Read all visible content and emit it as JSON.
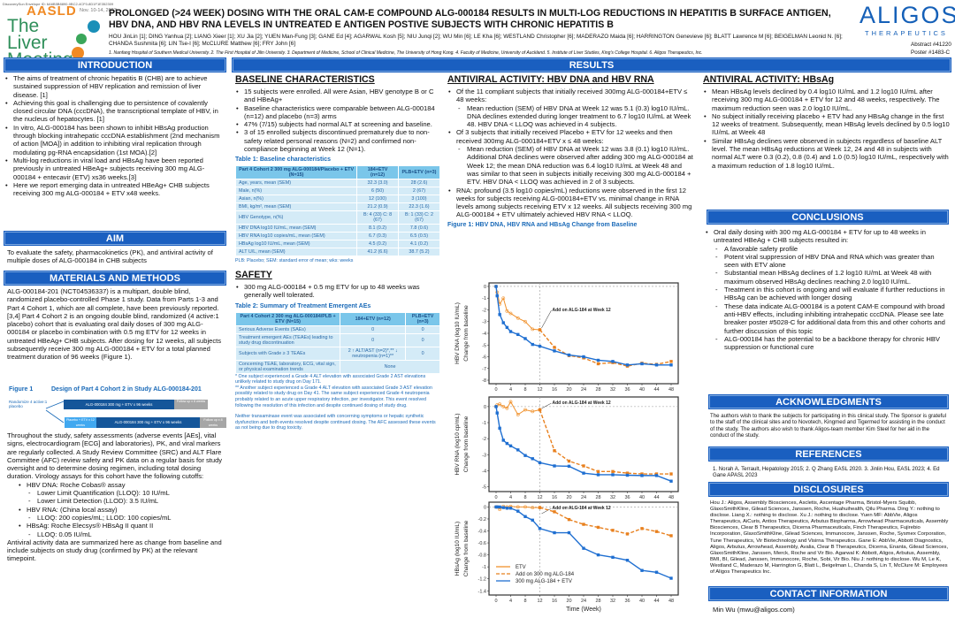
{
  "header": {
    "doi_note": "DiscoverySun Envelope ID: 6A6B5B8890-0BC2-4CF0-8D1F1E352309",
    "aasld": "AASLD",
    "dates": "Nov. 10-14, 2023",
    "meeting": "The Liver Meeting",
    "title": "PROLONGED (>24 WEEK) DOSING WITH THE ORAL CAM-E COMPOUND ALG-000184 RESULTS IN MULTI-LOG REDUCTIONS IN HEPATITIS B SURFACE ANTIGEN, HBV DNA, AND HBV RNA LEVELS IN UNTREATED E ANTIGEN POSTIVE SUBJECTS WITH CHRONIC HEPATITIS B",
    "authors": "HOU JinLin [1]; DING Yanhua [2]; LIANG Xieer [1]; XU Jia [2]; YUEN Man-Fung [3]; GANE Ed [4]; AGARWAL Kosh [5]; NIU Junqi [2]; WU Min [6]; LE Kha [6]; WESTLAND Christopher [6]; MADERAZO Maida [6]; HARRINGTON Genevieve [6]; BLATT Lawrence M [6]; BEIGELMAN Leonid N. [6]; CHANDA Sushmita [6]; LIN Tse-I [6]; McCLURE Matthew [6]; FRY John [6]",
    "affiliations": "1. Nanfang Hospital of Southern Medical University. 2. The First Hospital of Jilin University. 3. Department of Medicine, School of Clinical Medicine, The University of Hong Kong. 4. Faculty of Medicine, University of Auckland. 5. Institute of Liver Studies, King's College Hospital. 6. Aligos Therapeutics, Inc.",
    "logo": "ALIGOS",
    "logo_sub": "THERAPEUTICS",
    "abstract": "Abstract #41220",
    "poster": "Poster #1483-C"
  },
  "banners": {
    "intro": "INTRODUCTION",
    "results": "RESULTS",
    "aim": "AIM",
    "methods": "MATERIALS AND METHODS",
    "conclusions": "CONCLUSIONS",
    "ack": "ACKNOWLEDGMENTS",
    "refs": "REFERENCES",
    "disc": "DISCLOSURES",
    "contact": "CONTACT INFORMATION"
  },
  "intro": [
    {
      "text": "The aims of treatment of chronic hepatitis B (CHB) are to achieve sustained suppression of HBV replication and remission of liver disease. [1]"
    },
    {
      "text": "Achieving this goal is challenging due to persistence of covalently closed circular DNA (cccDNA), the transcriptional template of HBV, in the nucleus of hepatocytes. [1]"
    },
    {
      "text": "In vitro, ALG-000184 has been shown to inhibit HBsAg production through blocking intrahepatic cccDNA establishment (2nd mechanism of action [MOA]) in addition to inhibiting viral replication through modulating pg-RNA encapsidation (1st MOA).[2]"
    },
    {
      "text": "Multi-log reductions in viral load and HBsAg have been reported previously in untreated HBeAg+ subjects receiving 300 mg ALG-000184 + entecavir (ETV) xs36 weeks.[3]"
    },
    {
      "text": "Here we report emerging data in untreated HBeAg+ CHB subjects receiving 300 mg ALG-000184 + ETV x48 weeks."
    }
  ],
  "aim": "To evaluate the safety, pharmacokinetics (PK), and antiviral activity of multiple doses of ALG-000184 in CHB subjects",
  "methods": {
    "p1": "ALG-000184-201 (NCT04536337) is a multipart, double blind, randomized placebo-controlled Phase 1 study. Data from Parts 1-3 and Part 4 Cohort 1, which are all complete, have been previously reported. [3,4] Part 4 Cohort 2 is an ongoing double blind, randomized (4 active:1 placebo) cohort that is evaluating oral daily doses of 300 mg ALG-000184 or placebo in combination with 0.5 mg ETV for 12 weeks in untreated HBeAg+ CHB subjects. After dosing for 12 weeks, all subjects subsequently receive 300 mg ALG-000184 + ETV for a total planned treatment duration of 96 weeks (Figure 1).",
    "fig_label": "Figure 1",
    "fig_title": "Design of Part 4 Cohort 2 in Study ALG-000184-201",
    "randomize": "Randomize 4 active:1 placebo",
    "arm1": "ALG-000184 300 mg + ETV x 96 weeks",
    "followup1": "Follow up x 8 weeks",
    "placebo": "Placebo + ETV x 12 weeks",
    "arm2": "ALG-000184 300 mg + ETV x  96  weeks",
    "followup2": "Follow up x 8 weeks",
    "p2": "Throughout the study, safety assessments (adverse events [AEs], vital signs, electrocardiogram [ECG] and laboratories), PK, and viral markers are regularly collected. A Study Review Committee (SRC) and ALT Flare Committee (AFC) review safety and PK data on a regular basis for study oversight and to determine dosing regimen, including total dosing duration. Virology assays for this cohort have the following cutoffs:",
    "assays": [
      {
        "text": "HBV DNA: Roche Cobas® assay",
        "sub": [
          "Lower Limit Quantification (LLOQ): 10 IU/mL",
          "Lower Limit Detection (LLOD): 3.5 IU/mL"
        ]
      },
      {
        "text": "HBV RNA: (China local assay)",
        "sub": [
          "LLOQ: 200 copies/mL; LLOD: 100 copies/mL"
        ]
      },
      {
        "text": "HBsAg: Roche Elecsys® HBsAg II quant II",
        "sub": [
          "LLOQ: 0.05 IU/mL"
        ]
      }
    ],
    "p3": "Antiviral activity data are summarized here as change from baseline and include subjects on study drug (confirmed by PK) at the relevant timepoint."
  },
  "baseline": {
    "heading": "BASELINE CHARACTERISTICS",
    "bullets": [
      {
        "text": "15 subjects were enrolled.  All were Asian, HBV genotype B or C and HBeAg+"
      },
      {
        "text": "Baseline characteristics were comparable between ALG-000184 (n=12) and placebo (n=3) arms"
      },
      {
        "text": "47% (7/15) subjects had normal ALT at screening and baseline."
      },
      {
        "text": "3 of 15 enrolled subjects discontinued prematurely due to non-safety related personal reasons (N=2) and confirmed non-compliance beginning at Week 12 (N=1)."
      }
    ],
    "table_title": "Table 1: Baseline characteristics",
    "headers": [
      "Part 4 Cohort 2 300 mg ALG-000184/Placebo + ETV (N=15)",
      "184+ETV (n=12)",
      "PLB+ETV (n=3)"
    ],
    "rows": [
      [
        "Age, years, mean (SEM)",
        "32.3 (3.0)",
        "28 (2.6)"
      ],
      [
        "Male, n(%)",
        "6 (50)",
        "2 (67)"
      ],
      [
        "Asian, n(%)",
        "12 (100)",
        "3 (100)"
      ],
      [
        "BMI, kg/m², mean (SEM)",
        "21.2 (0.9)",
        "22.3 (1.6)"
      ],
      [
        "HBV Genotype, n(%)",
        "B: 4 (33) C: 8 (67)",
        "B: 1 (33) C: 2 (67)"
      ],
      [
        "HBV DNA log10 IU/mL, mean (SEM)",
        "8.1 (0.2)",
        "7.8 (0.6)"
      ],
      [
        "HBV RNA log10 copies/mL, mean (SEM)",
        "6.7 (0.3)",
        "6.5 (0.5)"
      ],
      [
        "HBsAg log10 IU/mL, mean (SEM)",
        "4.5 (0.2)",
        "4.1 (0.2)"
      ],
      [
        "ALT U/L, mean (SEM)",
        "41.2 (6.6)",
        "38.7 (5.2)"
      ]
    ],
    "footnote": "PLB: Placebo; SEM: standard error of mean; wks: weeks"
  },
  "safety": {
    "heading": "SAFETY",
    "bullets": [
      {
        "text": "300 mg ALG-000184 + 0.5 mg ETV for up to 48 weeks was generally well tolerated."
      }
    ],
    "table_title": "Table 2: Summary of Treatment Emergent AEs",
    "headers": [
      "Part 4 Cohort 2 300 mg ALG-000184/PLB + ETV (N=15)",
      "184+ETV (n=12)",
      "PLB+ETV (n=3)"
    ],
    "rows": [
      [
        "Serious Adverse Events (SAEs)",
        "0",
        "0"
      ],
      [
        "Treatment emergent AEs (TEAEs) leading to study drug discontinuation",
        "0",
        "0"
      ],
      [
        "Subjects with Grade ≥ 3 TEAEs",
        "2 ↑ ALT/AST (n=2)*,** ↓ neutropenia (n=1)**",
        "0"
      ]
    ],
    "last_row": [
      "Concerning TEAE, laboratory, ECG, vital sign, or physical examination trends",
      "None"
    ],
    "fn1": "* One subject experienced a Grade 4 ALT elevation with associated Grade 2 AST elevations unlikely related to study drug on Day 171.",
    "fn2": "** Another subject experienced a Grade 4 ALT elevation with associated Grade 3 AST elevation possibly related to study drug on Day 41. The same subject experienced Grade 4 neutropenia probably related to an acute upper respiratory infection, per investigator. This event resolved following the resolution of this infection and despite continued dosing of study drug.",
    "fn3": "Neither transaminase event was associated with concerning symptoms or hepatic synthetic dysfunction and both events resolved despite continued dosing. The AFC assessed these events as not being due to drug toxicity."
  },
  "antiviral": {
    "heading": "ANTIVIRAL ACTIVITY: HBV DNA and HBV RNA",
    "bullets": [
      {
        "text": "Of the 11 compliant subjects that initially received 300mg ALG-000184+ETV ≤ 48 weeks:",
        "sub": [
          "Mean reduction (SEM) of HBV DNA at Week 12 was 5.1 (0.3) log10 IU/mL. DNA declines extended during longer treatment to 6.7 log10 IU/mL at Week 48. HBV DNA < LLOQ was achieved in 4 subjects."
        ]
      },
      {
        "text": "Of 3 subjects that initially received Placebo + ETV for 12 weeks and then received 300mg  ALG-000184+ETV x ≤ 48 weeks:",
        "sub": [
          "Mean reduction (SEM) of HBV DNA at Week 12 was 3.8 (0.1) log10 IU/mL. Additional DNA declines were observed after adding 300 mg ALG-000184 at Week 12; the mean DNA reduction was 6.4 log10 IU/mL at Week 48 and was similar to that seen in subjects initially receiving 300 mg ALG-000184 + ETV. HBV DNA < LLOQ was achieved in 2 of 3 subjects."
        ]
      },
      {
        "text": "RNA: profound (3.5 log10 copies/mL) reductions were observed in the first 12 weeks for subjects receiving ALG-000184+ETV vs. minimal change in RNA levels among subjects receiving ETV x 12 weeks.  All subjects receiving 300 mg ALG-000184 + ETV ultimately achieved HBV RNA < LLOQ."
      }
    ],
    "figure_title": "Figure 1: HBV DNA, HBV RNA and HBsAg Change from Baseline"
  },
  "hbsag": {
    "heading": "ANTIVIRAL ACTIVITY: HBsAg",
    "bullets": [
      {
        "text": "Mean HBsAg levels declined by 0.4 log10 IU/mL and 1.2 log10 IU/mL after receiving 300 mg ALG-000184 + ETV for 12 and 48 weeks, respectively. The maximum reduction seen was 2.0 log10 IU/mL."
      },
      {
        "text": "No subject initially receiving placebo + ETV had any HBsAg change in the first 12 weeks of treatment. Subsequently, mean HBsAg levels declined by 0.5 log10 IU/mL at Week 48"
      },
      {
        "text": "Similar HBsAg declines were observed in subjects regardless of baseline ALT level. The mean HBsAg reductions at Week 12, 24 and 48 in subjects with normal ALT were 0.3 (0.2), 0.8 (0.4) and 1.0 (0.5) log10 IU/mL, respectively with a maximum reduction of 1.8 log10 IU/mL."
      }
    ]
  },
  "conclusions": [
    {
      "text": "Oral daily dosing with 300 mg ALG-000184 + ETV for up to 48 weeks in untreated HBeAg + CHB subjects resulted in:",
      "sub": [
        "A favorable safety profile",
        "Potent viral suppression of HBV DNA and RNA which was greater than seen with ETV alone",
        "Substantial mean HBsAg declines of 1.2 log10 IU/mL at Week 48 with maximum observed HBsAg declines reaching 2.0 log10 IU/mL.",
        "Treatment in this cohort is ongoing and will evaluate if further reductions in HBsAg can be achieved with longer dosing",
        "These data indicate ALG-000184 is a potent CAM-E compound with broad anti-HBV effects, including inhibiting intrahepatic cccDNA.  Please see late breaker poster #5028-C for additional data from this and other cohorts and further discussion of this topic",
        "ALG-000184 has the potential to be a backbone therapy for chronic HBV suppression or functional cure"
      ]
    }
  ],
  "ack": "The authors wish to thank the subjects for participating in this clinical study. The Sponsor is grateful to the staff of the clinical sites and to Novotech, Kingmed and Tigermed for assisting in the conduct of the study. The authors also wish to thank Aligos-team member Kim Steel for her aid in the conduct of the study.",
  "refs": "1. Norah A. Terrault, Hepatology 2015; 2. Q Zhang EASL 2020. 3. Jinlin Hou, EASL 2023; 4. Ed Gane APASL 2023",
  "disclosures": "Hou J.: Aligos, Assembly Biosciences, Ascletis, Ascentage Pharma, Bristol-Myers Squibb, GlaxoSmithKline, Gilead Sciences, Janssen, Roche, Huahuihealth, Qilu Pharma. Ding Y.: nothing to disclose. Liang X.: nothing to disclose. Xu J.: nothing to disclose. Yuen MF: AbbVie, Aligos Therapeutics, AiCuris, Antios Therapeutics, Arbutus Biopharma, Arrowhead Pharmaceuticals, Assembly Biosciences, Clear B Therapeutics, Dicerna Pharmaceuticals, Finch Therapeutics, Fujirebio Incorporation, GlaxoSmithKline, Gilead Sciences, Immunocore, Janssen, Roche, Sysmex Corporation, Tune Therapeutics, Vir Biotechnology and Visirna Therapeutics. Gane E: AbbVie, Abbott Diagnostics, Aligos, Arbutus, Arrowhead, Assembly, Avalia, Clear B Therapeutics, Dicerna, Enanta, Gilead Sciences, GlaxoSmithKline, Janssen, Merck, Roche and Vir Bio. Agarwal K: Abbott, Aligos, Arbutus, Assembly, BMI, BI, Gilead, Janssen, Immunocore, Roche, Sobi, Vir Bio. Niu J: nothing to disclose. Wu M, Le K, Westland C, Maderazo M, Harrington G, Blatt L, Beigelman L, Chanda S, Lin T, McClure M: Employees of Aligos Therapeutics Inc.",
  "contact": "Min Wu (mwu@aligos.com)",
  "colors": {
    "banner": "#1a5fc0",
    "etv": "#f0922e",
    "addon": "#e8801e",
    "alg": "#1f6fd1"
  },
  "chart_data": [
    {
      "type": "line",
      "ylabel": "HBV DNA (log10 IU/mL) Change from baseline",
      "ylim": [
        -8.3,
        0.3
      ],
      "yticks": [
        0,
        -1,
        -2,
        -3,
        -4,
        -5,
        -6,
        -7,
        -8
      ],
      "xticks": [
        0,
        4,
        8,
        12,
        16,
        20,
        24,
        28,
        32,
        36,
        40,
        44,
        48
      ],
      "annotation": "Add on ALG-184 at Week 12",
      "series": [
        {
          "name": "ETV",
          "x": [
            0,
            0.3,
            1,
            2,
            3,
            4,
            6,
            8,
            10,
            12
          ],
          "y": [
            0,
            -0.5,
            -1.5,
            -1.0,
            -2.1,
            -2.3,
            -2.7,
            -3.0,
            -3.65,
            -3.7
          ]
        },
        {
          "name": "Add on 300 mg ALG-184",
          "x": [
            12,
            16,
            20,
            24,
            28,
            32,
            36,
            40,
            44,
            48
          ],
          "y": [
            -3.7,
            -5.2,
            -5.9,
            -6.1,
            -6.6,
            -6.5,
            -6.8,
            -6.55,
            -6.65,
            -6.4
          ]
        },
        {
          "name": "300 mg ALG-184 + ETV",
          "x": [
            0,
            0.3,
            1,
            2,
            3,
            4,
            6,
            8,
            10,
            12,
            16,
            20,
            24,
            28,
            32,
            36,
            40,
            44,
            48
          ],
          "y": [
            0,
            -0.8,
            -2.4,
            -3.1,
            -3.5,
            -3.85,
            -4.1,
            -4.45,
            -4.95,
            -5.1,
            -5.5,
            -5.85,
            -6.0,
            -6.3,
            -6.4,
            -6.7,
            -6.6,
            -6.7,
            -6.7
          ]
        }
      ]
    },
    {
      "type": "line",
      "ylabel": "HBV RNA (log10 cp/mL) Change from baseline",
      "ylim": [
        -5.3,
        0.6
      ],
      "yticks": [
        0,
        -1,
        -2,
        -3,
        -4,
        -5
      ],
      "xticks": [
        0,
        4,
        8,
        12,
        16,
        20,
        24,
        28,
        32,
        36,
        40,
        44,
        48
      ],
      "annotation": "Add on ALG-184 at Week 12",
      "series": [
        {
          "name": "ETV",
          "x": [
            0,
            0.3,
            1,
            2,
            3,
            4,
            6,
            8,
            10,
            12
          ],
          "y": [
            0,
            0.1,
            0.15,
            0,
            -0.1,
            0.3,
            -0.5,
            -0.2,
            -0.3,
            -0.2
          ]
        },
        {
          "name": "Add on 300 mg ALG-184",
          "x": [
            12,
            16,
            20,
            24,
            28,
            32,
            36,
            40,
            44,
            48
          ],
          "y": [
            -0.2,
            -2.75,
            -3.4,
            -3.7,
            -4.05,
            -4.05,
            -4.15,
            -4.2,
            -4.2,
            -4.2
          ]
        },
        {
          "name": "300 mg ALG-184 + ETV",
          "x": [
            0,
            0.3,
            1,
            2,
            3,
            4,
            6,
            8,
            10,
            12,
            16,
            20,
            24,
            28,
            32,
            36,
            40,
            44,
            48
          ],
          "y": [
            0,
            -0.4,
            -1.35,
            -2.1,
            -2.3,
            -2.45,
            -2.7,
            -3.05,
            -3.25,
            -3.5,
            -3.7,
            -3.72,
            -4.15,
            -4.25,
            -4.25,
            -4.28,
            -4.3,
            -4.3,
            -4.65
          ]
        }
      ]
    },
    {
      "type": "line",
      "ylabel": "HBsAg (log10 IU/mL) Change from baseline",
      "xlabel": "Time (Week)",
      "ylim": [
        -1.47,
        0.08
      ],
      "yticks": [
        0,
        -0.2,
        -0.4,
        -0.6,
        -0.8,
        -1,
        -1.2,
        -1.4
      ],
      "xticks": [
        0,
        4,
        8,
        12,
        16,
        20,
        24,
        28,
        32,
        36,
        40,
        44,
        48
      ],
      "annotation": "Add on ALG-184 at Week 12",
      "legend": "bottom-left",
      "series": [
        {
          "name": "ETV",
          "x": [
            0,
            0.3,
            1,
            2,
            3,
            4,
            6,
            8,
            10,
            12
          ],
          "y": [
            0,
            0,
            -0.04,
            0.01,
            0,
            0.01,
            0,
            0,
            -0.01,
            -0.01
          ]
        },
        {
          "name": "Add on 300 mg ALG-184",
          "x": [
            12,
            16,
            20,
            24,
            28,
            32,
            36,
            40,
            44,
            48
          ],
          "y": [
            -0.01,
            -0.08,
            -0.21,
            -0.29,
            -0.34,
            -0.39,
            -0.45,
            -0.36,
            -0.41,
            -0.48
          ]
        },
        {
          "name": "300 mg ALG-184 + ETV",
          "x": [
            0,
            0.3,
            1,
            2,
            3,
            4,
            6,
            8,
            10,
            12,
            16,
            20,
            24,
            28,
            32,
            36,
            40,
            44,
            48
          ],
          "y": [
            0,
            0,
            0,
            -0.01,
            -0.02,
            -0.02,
            -0.07,
            -0.16,
            -0.22,
            -0.36,
            -0.43,
            -0.43,
            -0.69,
            -0.8,
            -0.84,
            -0.89,
            -1.06,
            -1.09,
            -1.19
          ]
        }
      ]
    }
  ]
}
